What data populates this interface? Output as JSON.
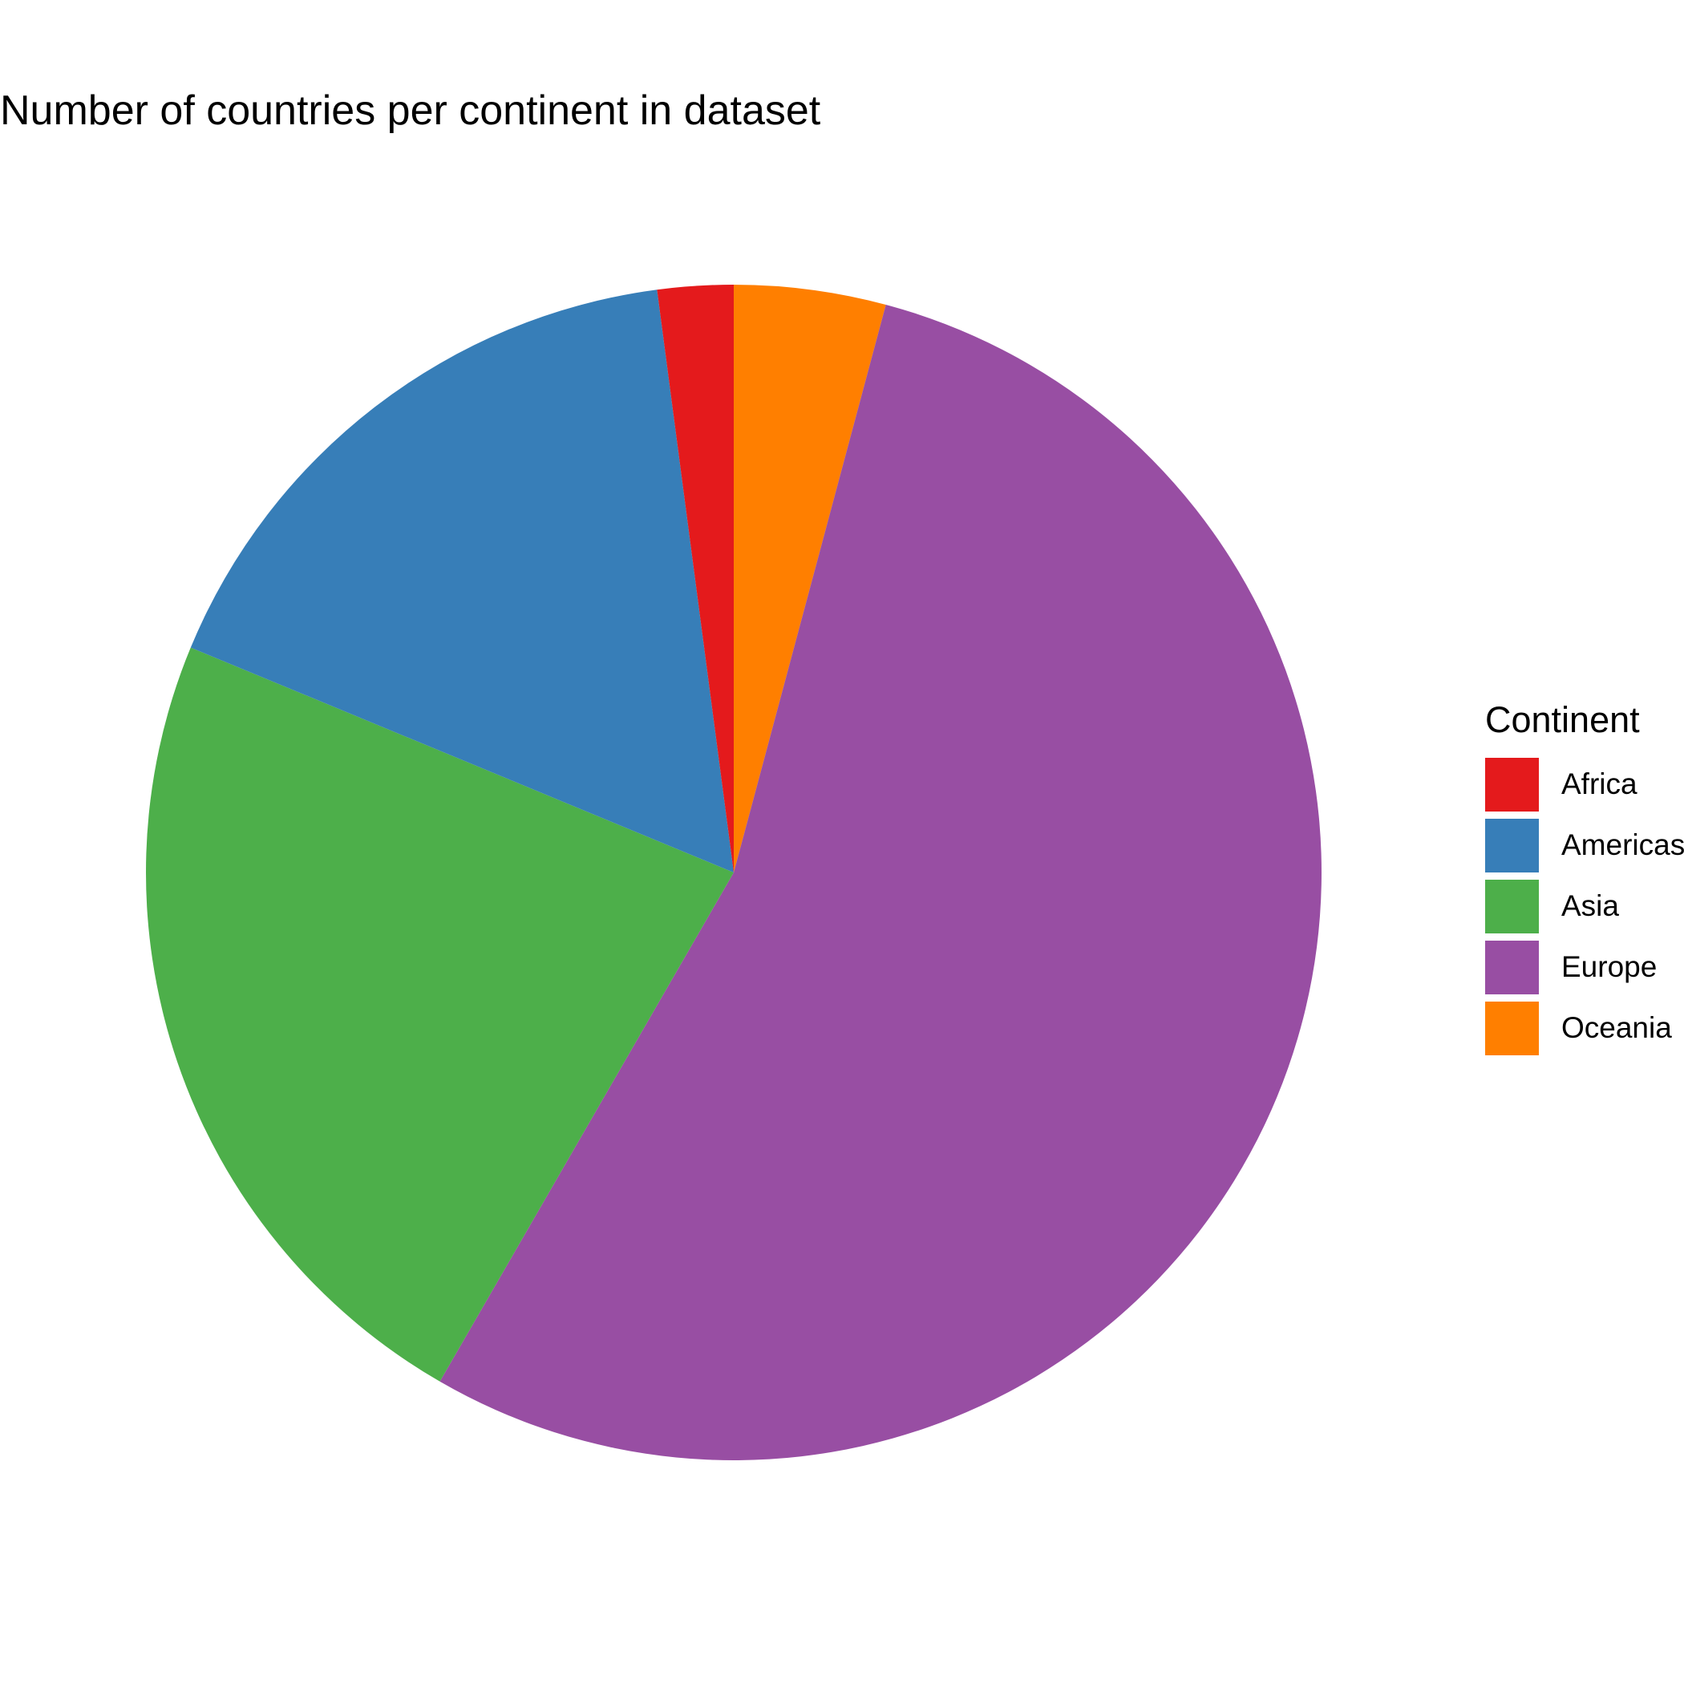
{
  "chart_data": {
    "type": "pie",
    "title": "Number of countries per continent in dataset",
    "legend_title": "Continent",
    "legend_position": "right",
    "direction": "clockwise",
    "start": "top",
    "slices": [
      {
        "label": "Oceania",
        "value": 2,
        "color": "#FF7F00"
      },
      {
        "label": "Europe",
        "value": 26,
        "color": "#984EA3"
      },
      {
        "label": "Asia",
        "value": 11,
        "color": "#4DAF4A"
      },
      {
        "label": "Americas",
        "value": 8,
        "color": "#377EB8"
      },
      {
        "label": "Africa",
        "value": 1,
        "color": "#E41A1C"
      }
    ],
    "legend_order": [
      "Africa",
      "Americas",
      "Asia",
      "Europe",
      "Oceania"
    ]
  }
}
